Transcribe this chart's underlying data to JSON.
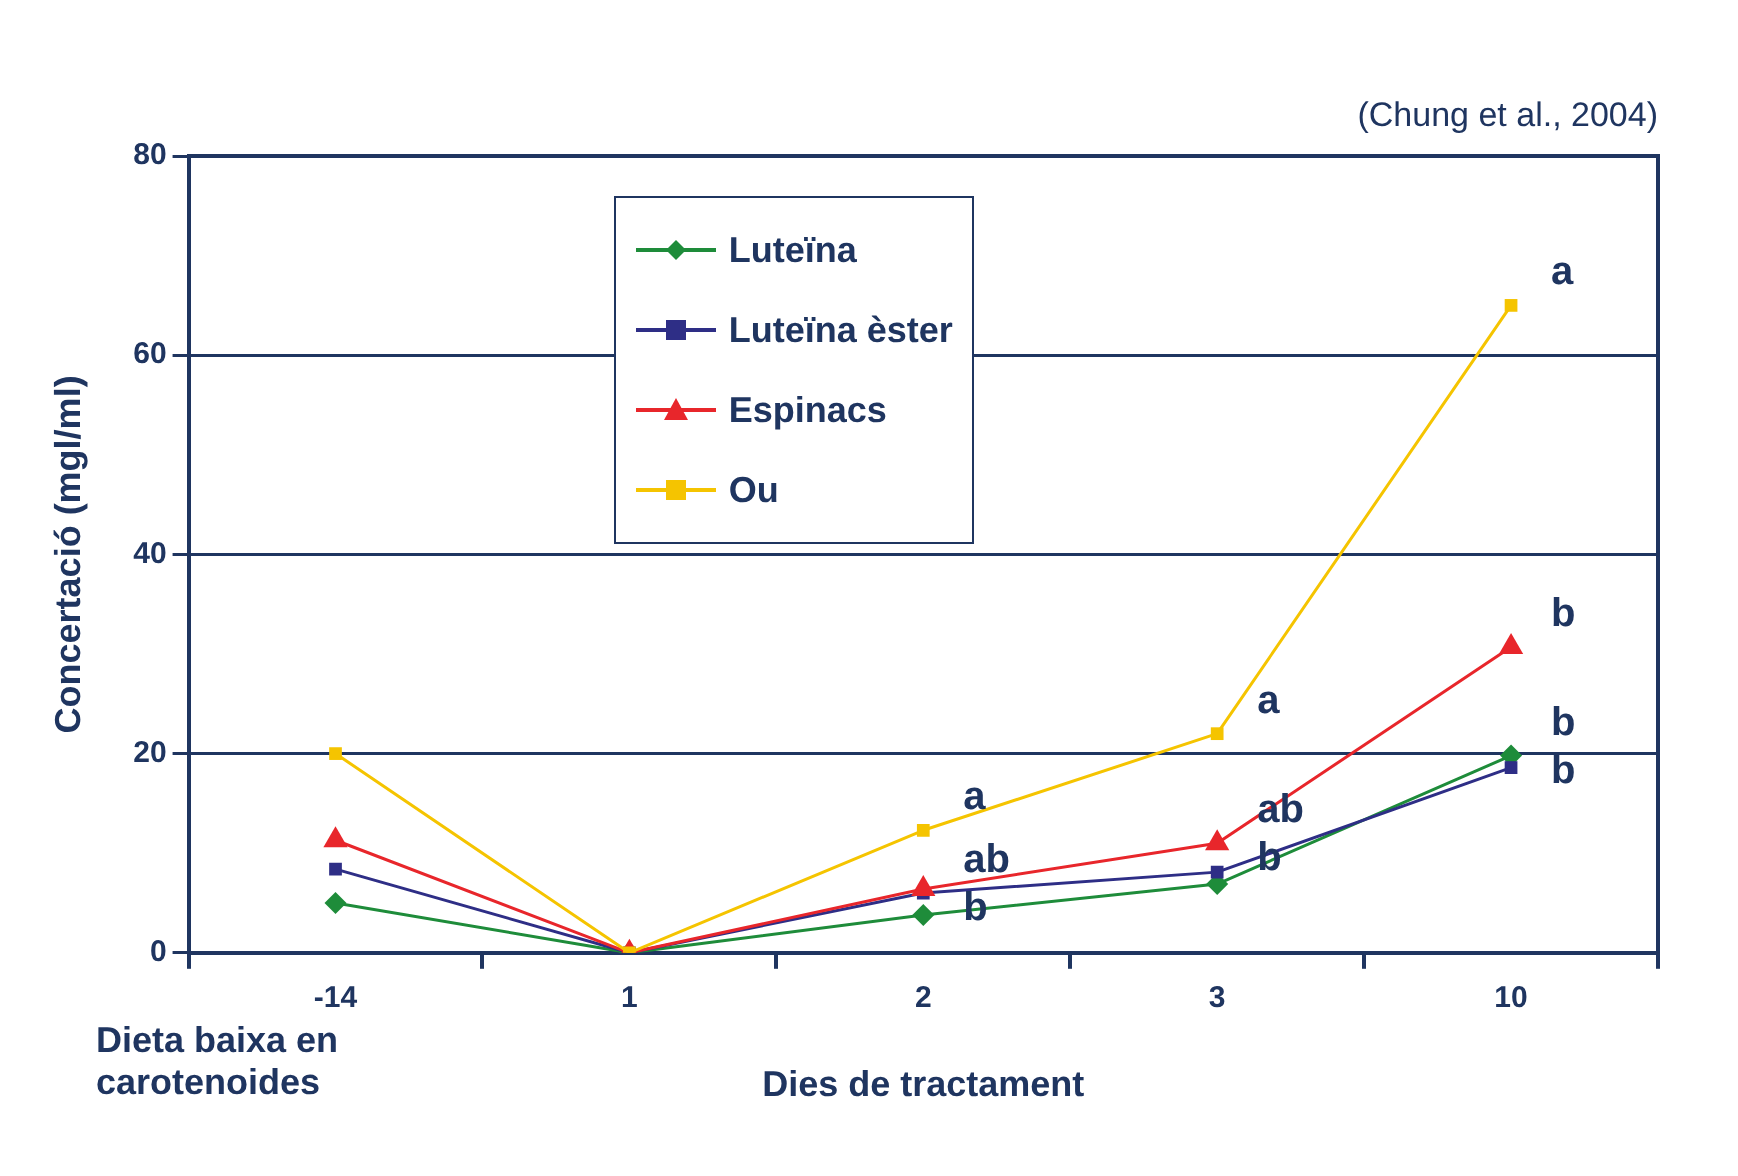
{
  "chart_data": {
    "type": "line",
    "xlabel": "Dies de tractament",
    "ylabel": "Concertació (mgl/ml)",
    "categories": [
      "-14",
      "1",
      "2",
      "3",
      "10"
    ],
    "series": [
      {
        "name": "Luteïna",
        "color": "#1e8c3a",
        "marker": "diamond",
        "values": [
          5,
          0,
          3.8,
          6.9,
          19.8
        ]
      },
      {
        "name": "Luteïna èster",
        "color": "#2e2e86",
        "marker": "square",
        "values": [
          8.4,
          0,
          6,
          8.1,
          18.6
        ]
      },
      {
        "name": "Espinacs",
        "color": "#e8262b",
        "marker": "triangle",
        "values": [
          11.3,
          0,
          6.4,
          11,
          30.7
        ]
      },
      {
        "name": "Ou",
        "color": "#f5c400",
        "marker": "square",
        "values": [
          20,
          0,
          12.3,
          22,
          65
        ]
      }
    ],
    "ylim": [
      0,
      80
    ],
    "yticks": [
      0,
      20,
      40,
      60,
      80
    ],
    "grid": "y",
    "legend": "top",
    "line_style": "solid",
    "annotations": [
      "(Chung et al., 2004)",
      "Dieta baixa en carotenoides",
      {
        "text": "a",
        "x": "2",
        "y": 12.3
      },
      {
        "text": "ab",
        "x": "2",
        "y": 6
      },
      {
        "text": "b",
        "x": "2",
        "y": 3.8
      },
      {
        "text": "a",
        "x": "3",
        "y": 22
      },
      {
        "text": "ab",
        "x": "3",
        "y": 11
      },
      {
        "text": "b",
        "x": "3",
        "y": 6.9
      },
      {
        "text": "a",
        "x": "10",
        "y": 65
      },
      {
        "text": "b",
        "x": "10",
        "y": 30.7
      },
      {
        "text": "b",
        "x": "10",
        "y": 19.8
      },
      {
        "text": "b",
        "x": "10",
        "y": 18.6
      }
    ]
  }
}
